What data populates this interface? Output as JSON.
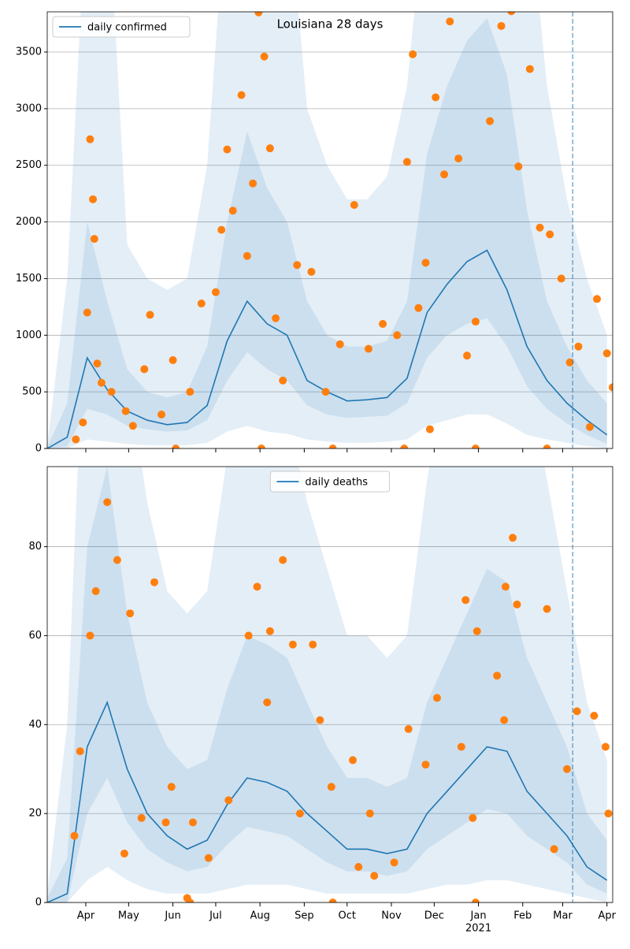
{
  "chart_data": [
    {
      "type": "line",
      "title": "Louisiana 28 days",
      "legend": "upper left",
      "grid": true,
      "xtick_labels": false,
      "x": [
        0,
        14,
        28,
        42,
        56,
        70,
        84,
        98,
        112,
        126,
        140,
        154,
        168,
        182,
        196,
        210,
        224,
        238,
        252,
        266,
        280,
        294,
        308,
        322,
        336,
        350,
        364,
        378,
        392
      ],
      "series": [
        {
          "name": "daily confirmed",
          "color": "#1f77b4",
          "values": [
            0,
            100,
            800,
            520,
            330,
            250,
            210,
            230,
            380,
            950,
            1300,
            1100,
            1000,
            600,
            500,
            420,
            430,
            450,
            620,
            1200,
            1450,
            1650,
            1750,
            1400,
            900,
            600,
            400,
            250,
            120
          ]
        }
      ],
      "bands": [
        {
          "color": "#1f77b4",
          "lower": [
            0,
            0,
            80,
            60,
            40,
            30,
            30,
            30,
            50,
            150,
            200,
            150,
            130,
            80,
            60,
            50,
            50,
            60,
            80,
            200,
            250,
            300,
            300,
            220,
            120,
            80,
            50,
            20,
            5
          ],
          "upper": [
            20,
            1500,
            5000,
            5000,
            1800,
            1500,
            1400,
            1500,
            2500,
            5000,
            5000,
            5000,
            5000,
            3000,
            2500,
            2200,
            2200,
            2400,
            3200,
            5000,
            5000,
            5000,
            5000,
            5000,
            5000,
            3200,
            2200,
            1500,
            1000
          ]
        },
        {
          "color": "#1f77b4",
          "lower": [
            0,
            20,
            350,
            300,
            200,
            170,
            150,
            160,
            250,
            600,
            850,
            700,
            600,
            380,
            300,
            270,
            280,
            290,
            400,
            800,
            1000,
            1100,
            1150,
            900,
            550,
            350,
            220,
            120,
            40
          ],
          "upper": [
            10,
            400,
            2000,
            1300,
            700,
            500,
            450,
            500,
            900,
            2000,
            2800,
            2300,
            2000,
            1300,
            1000,
            900,
            900,
            950,
            1300,
            2600,
            3200,
            3600,
            3800,
            3300,
            2100,
            1300,
            900,
            600,
            400
          ]
        }
      ],
      "scatter": {
        "color": "#ff7f0e",
        "x": [
          20,
          25,
          28,
          30,
          32,
          33,
          35,
          38,
          45,
          55,
          60,
          68,
          72,
          80,
          88,
          100,
          108,
          118,
          122,
          126,
          130,
          136,
          140,
          144,
          148,
          152,
          156,
          160,
          165,
          175,
          185,
          195,
          205,
          215,
          225,
          235,
          245,
          252,
          256,
          260,
          265,
          268,
          272,
          278,
          282,
          288,
          294,
          300,
          310,
          318,
          325,
          330,
          338,
          345,
          352,
          360,
          366,
          372,
          380,
          385,
          392,
          396,
          90,
          150,
          200,
          250,
          300,
          350
        ],
        "values": [
          80,
          230,
          1200,
          2730,
          2200,
          1850,
          750,
          580,
          500,
          330,
          200,
          700,
          1180,
          300,
          780,
          500,
          1280,
          1380,
          1930,
          2640,
          2100,
          3120,
          1700,
          2340,
          3850,
          3460,
          2650,
          1150,
          600,
          1620,
          1560,
          500,
          920,
          2150,
          880,
          1100,
          1000,
          2530,
          3480,
          1240,
          1640,
          170,
          3100,
          2420,
          3770,
          2560,
          820,
          1120,
          2890,
          3730,
          3860,
          2490,
          3350,
          1950,
          1890,
          1500,
          760,
          900,
          190,
          1320,
          840,
          540,
          0,
          0,
          0,
          0,
          0,
          0
        ]
      },
      "vline_x": 368,
      "xlim": [
        0,
        396
      ],
      "xticks": [
        27,
        57,
        88,
        118,
        149,
        180,
        210,
        241,
        271,
        302,
        333,
        361,
        392
      ],
      "ylim": [
        0,
        3855
      ],
      "yticks": [
        0,
        500,
        1000,
        1500,
        2000,
        2500,
        3000,
        3500
      ]
    },
    {
      "type": "line",
      "legend": "upper center",
      "grid": true,
      "xtick_labels": true,
      "x_sublabel": "2021",
      "x": [
        0,
        14,
        28,
        42,
        56,
        70,
        84,
        98,
        112,
        126,
        140,
        154,
        168,
        182,
        196,
        210,
        224,
        238,
        252,
        266,
        280,
        294,
        308,
        322,
        336,
        350,
        364,
        378,
        392
      ],
      "series": [
        {
          "name": "daily deaths",
          "color": "#1f77b4",
          "values": [
            0,
            2,
            35,
            45,
            30,
            20,
            15,
            12,
            14,
            22,
            28,
            27,
            25,
            20,
            16,
            12,
            12,
            11,
            12,
            20,
            25,
            30,
            35,
            34,
            25,
            20,
            15,
            8,
            5
          ]
        }
      ],
      "bands": [
        {
          "color": "#1f77b4",
          "lower": [
            0,
            0,
            5,
            8,
            5,
            3,
            2,
            2,
            2,
            3,
            4,
            4,
            4,
            3,
            2,
            2,
            2,
            2,
            2,
            3,
            4,
            4,
            5,
            5,
            4,
            3,
            2,
            1,
            0
          ],
          "upper": [
            2,
            40,
            150,
            150,
            120,
            90,
            70,
            65,
            70,
            100,
            120,
            120,
            110,
            90,
            75,
            60,
            60,
            55,
            60,
            95,
            120,
            140,
            150,
            150,
            120,
            95,
            70,
            45,
            32
          ]
        },
        {
          "color": "#1f77b4",
          "lower": [
            0,
            0,
            20,
            28,
            18,
            12,
            9,
            7,
            8,
            13,
            17,
            16,
            15,
            12,
            9,
            7,
            7,
            6,
            7,
            12,
            15,
            18,
            21,
            20,
            15,
            12,
            9,
            4,
            2
          ],
          "upper": [
            1,
            10,
            80,
            98,
            65,
            45,
            35,
            30,
            32,
            48,
            60,
            58,
            55,
            45,
            35,
            28,
            28,
            26,
            28,
            45,
            55,
            65,
            75,
            72,
            55,
            45,
            35,
            20,
            14
          ]
        }
      ],
      "scatter": {
        "color": "#ff7f0e",
        "x": [
          42,
          49,
          30,
          34,
          58,
          75,
          54,
          87,
          98,
          127,
          141,
          147,
          156,
          165,
          172,
          186,
          191,
          214,
          218,
          229,
          243,
          253,
          273,
          293,
          298,
          301,
          315,
          321,
          326,
          329,
          350,
          364,
          371,
          383,
          391,
          393,
          355,
          320,
          290,
          265,
          226,
          199,
          177,
          154,
          113,
          102,
          83,
          66,
          23,
          19,
          100,
          200,
          300
        ],
        "values": [
          90,
          77,
          60,
          70,
          65,
          72,
          11,
          26,
          1,
          23,
          60,
          71,
          61,
          77,
          58,
          58,
          41,
          32,
          8,
          6,
          9,
          39,
          46,
          68,
          19,
          61,
          51,
          71,
          82,
          67,
          66,
          30,
          43,
          42,
          35,
          20,
          12,
          41,
          35,
          31,
          20,
          26,
          20,
          45,
          10,
          18,
          18,
          19,
          34,
          15,
          0,
          0,
          0
        ]
      },
      "vline_x": 368,
      "xlim": [
        0,
        396
      ],
      "xticks": [
        {
          "value": 27,
          "label": "Apr"
        },
        {
          "value": 57,
          "label": "May"
        },
        {
          "value": 88,
          "label": "Jun"
        },
        {
          "value": 118,
          "label": "Jul"
        },
        {
          "value": 149,
          "label": "Aug"
        },
        {
          "value": 180,
          "label": "Sep"
        },
        {
          "value": 210,
          "label": "Oct"
        },
        {
          "value": 241,
          "label": "Nov"
        },
        {
          "value": 271,
          "label": "Dec"
        },
        {
          "value": 302,
          "label": "Jan"
        },
        {
          "value": 333,
          "label": "Feb"
        },
        {
          "value": 361,
          "label": "Mar"
        },
        {
          "value": 392,
          "label": "Apr"
        }
      ],
      "ylim": [
        0,
        98
      ],
      "yticks": [
        0,
        20,
        40,
        60,
        80
      ]
    }
  ]
}
